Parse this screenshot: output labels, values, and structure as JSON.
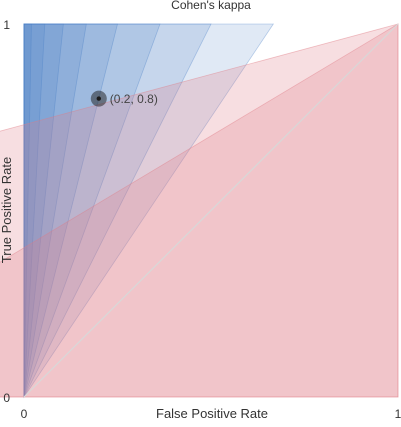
{
  "chart_data": {
    "type": "contour",
    "title": "Cohen's kappa",
    "xlabel": "False Positive Rate",
    "ylabel": "True Positive Rate",
    "xlim": [
      0,
      1
    ],
    "ylim": [
      0,
      1
    ],
    "x_ticks": [
      "0",
      "1"
    ],
    "y_ticks": [
      "0",
      "1"
    ],
    "diagonal": true,
    "positive_band_slopes": [
      1.5,
      2,
      2.75,
      4,
      6,
      9.5,
      18,
      50
    ],
    "negative_band_slopes": [
      0.6,
      0.27
    ],
    "colors": {
      "positive": "#4a7fc5",
      "negative": "#df7c86",
      "diagonal": "#d8d8d8",
      "marker": "#1a1a1a"
    },
    "point": {
      "x": 0.2,
      "y": 0.8,
      "label": "(0.2, 0.8)"
    }
  }
}
